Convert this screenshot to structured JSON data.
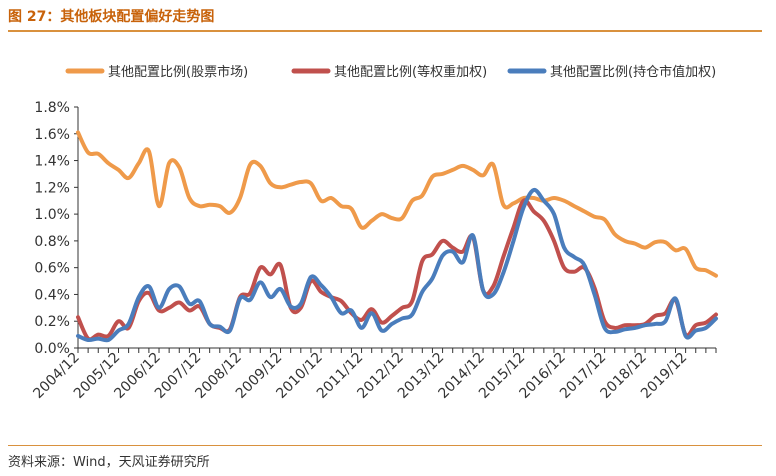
{
  "header": {
    "title": "图 27：其他板块配置偏好走势图"
  },
  "footer": {
    "source": "资料来源：Wind，天风证券研究所"
  },
  "colors": {
    "market_cap": "#ef9a4a",
    "equal_weight": "#c0504d",
    "float_cap": "#4a7dbc",
    "accent": "#d9913e"
  },
  "chart_data": {
    "type": "line",
    "title": "",
    "xlabel": "",
    "ylabel": "",
    "ylim": [
      0,
      1.8
    ],
    "y_ticks": [
      "0.0%",
      "0.2%",
      "0.4%",
      "0.6%",
      "0.8%",
      "1.0%",
      "1.2%",
      "1.4%",
      "1.6%",
      "1.8%"
    ],
    "x_ticks": [
      "2004/12",
      "2005/12",
      "2006/12",
      "2007/12",
      "2008/12",
      "2009/12",
      "2010/12",
      "2011/12",
      "2012/12",
      "2013/12",
      "2014/12",
      "2015/12",
      "2016/12",
      "2017/12",
      "2018/12",
      "2019/12"
    ],
    "x_range": [
      0,
      63
    ],
    "legend_position": "top",
    "grid": false,
    "series": [
      {
        "name": "其他配置比例(股票市场)",
        "color": "#ef9a4a",
        "x": [
          0,
          1,
          2,
          3,
          4,
          5,
          6,
          7,
          8,
          9,
          10,
          11,
          12,
          13,
          14,
          15,
          16,
          17,
          18,
          19,
          20,
          21,
          22,
          23,
          24,
          25,
          26,
          27,
          28,
          29,
          30,
          31,
          32,
          33,
          34,
          35,
          36,
          37,
          38,
          39,
          40,
          41,
          42,
          43,
          44,
          45,
          46,
          47,
          48,
          49,
          50,
          51,
          52,
          53,
          54,
          55,
          56,
          57,
          58,
          59,
          60,
          61,
          62,
          63
        ],
        "values": [
          1.61,
          1.46,
          1.45,
          1.38,
          1.33,
          1.27,
          1.38,
          1.47,
          1.06,
          1.38,
          1.35,
          1.12,
          1.06,
          1.07,
          1.06,
          1.01,
          1.12,
          1.37,
          1.36,
          1.23,
          1.2,
          1.22,
          1.24,
          1.23,
          1.1,
          1.12,
          1.06,
          1.04,
          0.9,
          0.95,
          1.0,
          0.97,
          0.97,
          1.1,
          1.14,
          1.28,
          1.3,
          1.33,
          1.36,
          1.33,
          1.29,
          1.37,
          1.07,
          1.08,
          1.12,
          1.12,
          1.1,
          1.12,
          1.1,
          1.06,
          1.02,
          0.98,
          0.96,
          0.85,
          0.8,
          0.78,
          0.75,
          0.79,
          0.79,
          0.73,
          0.74,
          0.6,
          0.58,
          0.54
        ]
      },
      {
        "name": "其他配置比例(等权重加权)",
        "color": "#c0504d",
        "x": [
          0,
          1,
          2,
          3,
          4,
          5,
          6,
          7,
          8,
          9,
          10,
          11,
          12,
          13,
          14,
          15,
          16,
          17,
          18,
          19,
          20,
          21,
          22,
          23,
          24,
          25,
          26,
          27,
          28,
          29,
          30,
          31,
          32,
          33,
          34,
          35,
          36,
          37,
          38,
          39,
          40,
          41,
          42,
          43,
          44,
          45,
          46,
          47,
          48,
          49,
          50,
          51,
          52,
          53,
          54,
          55,
          56,
          57,
          58,
          59,
          60,
          61,
          62,
          63
        ],
        "values": [
          0.23,
          0.07,
          0.1,
          0.09,
          0.2,
          0.15,
          0.35,
          0.41,
          0.28,
          0.3,
          0.34,
          0.28,
          0.31,
          0.18,
          0.15,
          0.14,
          0.38,
          0.41,
          0.6,
          0.55,
          0.62,
          0.3,
          0.3,
          0.5,
          0.42,
          0.38,
          0.35,
          0.26,
          0.21,
          0.29,
          0.19,
          0.24,
          0.3,
          0.35,
          0.65,
          0.7,
          0.8,
          0.75,
          0.72,
          0.83,
          0.43,
          0.46,
          0.68,
          0.9,
          1.1,
          1.02,
          0.95,
          0.8,
          0.6,
          0.57,
          0.6,
          0.45,
          0.2,
          0.15,
          0.17,
          0.17,
          0.18,
          0.24,
          0.26,
          0.36,
          0.1,
          0.17,
          0.19,
          0.25
        ]
      },
      {
        "name": "其他配置比例(持仓市值加权)",
        "color": "#4a7dbc",
        "x": [
          0,
          1,
          2,
          3,
          4,
          5,
          6,
          7,
          8,
          9,
          10,
          11,
          12,
          13,
          14,
          15,
          16,
          17,
          18,
          19,
          20,
          21,
          22,
          23,
          24,
          25,
          26,
          27,
          28,
          29,
          30,
          31,
          32,
          33,
          34,
          35,
          36,
          37,
          38,
          39,
          40,
          41,
          42,
          43,
          44,
          45,
          46,
          47,
          48,
          49,
          50,
          51,
          52,
          53,
          54,
          55,
          56,
          57,
          58,
          59,
          60,
          61,
          62,
          63
        ],
        "values": [
          0.09,
          0.06,
          0.07,
          0.06,
          0.13,
          0.18,
          0.38,
          0.46,
          0.3,
          0.44,
          0.46,
          0.33,
          0.35,
          0.18,
          0.16,
          0.13,
          0.37,
          0.36,
          0.49,
          0.38,
          0.44,
          0.31,
          0.33,
          0.53,
          0.47,
          0.38,
          0.26,
          0.28,
          0.15,
          0.26,
          0.13,
          0.18,
          0.22,
          0.25,
          0.42,
          0.52,
          0.69,
          0.72,
          0.64,
          0.84,
          0.43,
          0.4,
          0.56,
          0.8,
          1.05,
          1.18,
          1.1,
          1.0,
          0.75,
          0.68,
          0.62,
          0.4,
          0.15,
          0.12,
          0.14,
          0.15,
          0.17,
          0.18,
          0.2,
          0.37,
          0.09,
          0.13,
          0.15,
          0.22
        ]
      }
    ]
  }
}
